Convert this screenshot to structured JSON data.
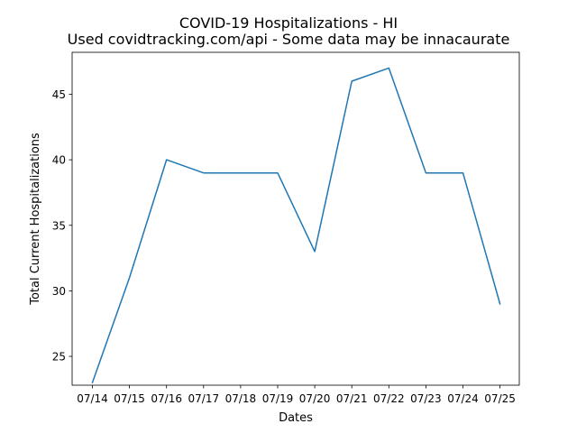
{
  "chart_data": {
    "type": "line",
    "title": "COVID-19 Hospitalizations - HI",
    "subtitle": "Used covidtracking.com/api - Some data may be innacaurate",
    "xlabel": "Dates",
    "ylabel": "Total Current Hospitalizations",
    "categories": [
      "07/14",
      "07/15",
      "07/16",
      "07/17",
      "07/18",
      "07/19",
      "07/20",
      "07/21",
      "07/22",
      "07/23",
      "07/24",
      "07/25"
    ],
    "values": [
      23,
      31,
      40,
      39,
      39,
      39,
      33,
      46,
      47,
      39,
      39,
      29
    ],
    "ylim": [
      22.8,
      48.2
    ],
    "yticks": [
      25,
      30,
      35,
      40,
      45
    ],
    "grid": false,
    "line_color": "#1f77b4"
  }
}
